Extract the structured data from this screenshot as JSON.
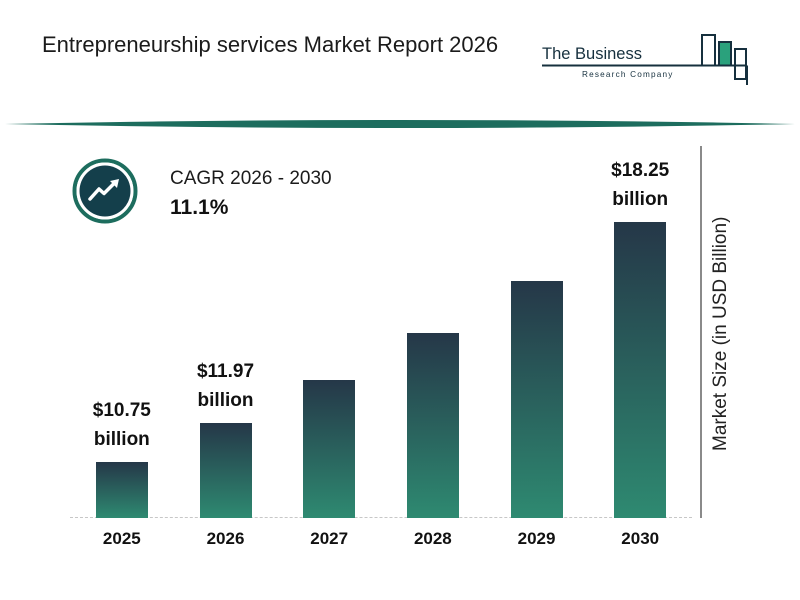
{
  "header": {
    "title": "Entrepreneurship services Market Report 2026",
    "logo": {
      "line1": "The Business",
      "line2": "Research Company"
    }
  },
  "cagr": {
    "label": "CAGR 2026 - 2030",
    "value": "11.1%"
  },
  "colors": {
    "accent_teal": "#1d6d5e",
    "logo_navy": "#16303e",
    "logo_green": "#2aa17c",
    "bar_gradient_top": "#253748",
    "bar_gradient_bottom": "#2e8a71",
    "icon_circle_fill": "#143f4b"
  },
  "chart_data": {
    "type": "bar",
    "categories": [
      "2025",
      "2026",
      "2027",
      "2028",
      "2029",
      "2030"
    ],
    "values": [
      10.75,
      11.97,
      13.3,
      14.77,
      16.41,
      18.25
    ],
    "annotations": [
      {
        "index": 0,
        "line1": "$10.75",
        "line2": "billion"
      },
      {
        "index": 1,
        "line1": "$11.97",
        "line2": "billion"
      },
      {
        "index": 5,
        "line1": "$18.25",
        "line2": "billion"
      }
    ],
    "title": "",
    "xlabel": "",
    "ylabel": "Market Size (in USD Billion)",
    "ylim": [
      9,
      19
    ],
    "grid": false,
    "legend": false,
    "bar_gradient": [
      "#253748",
      "#2e8a71"
    ]
  }
}
